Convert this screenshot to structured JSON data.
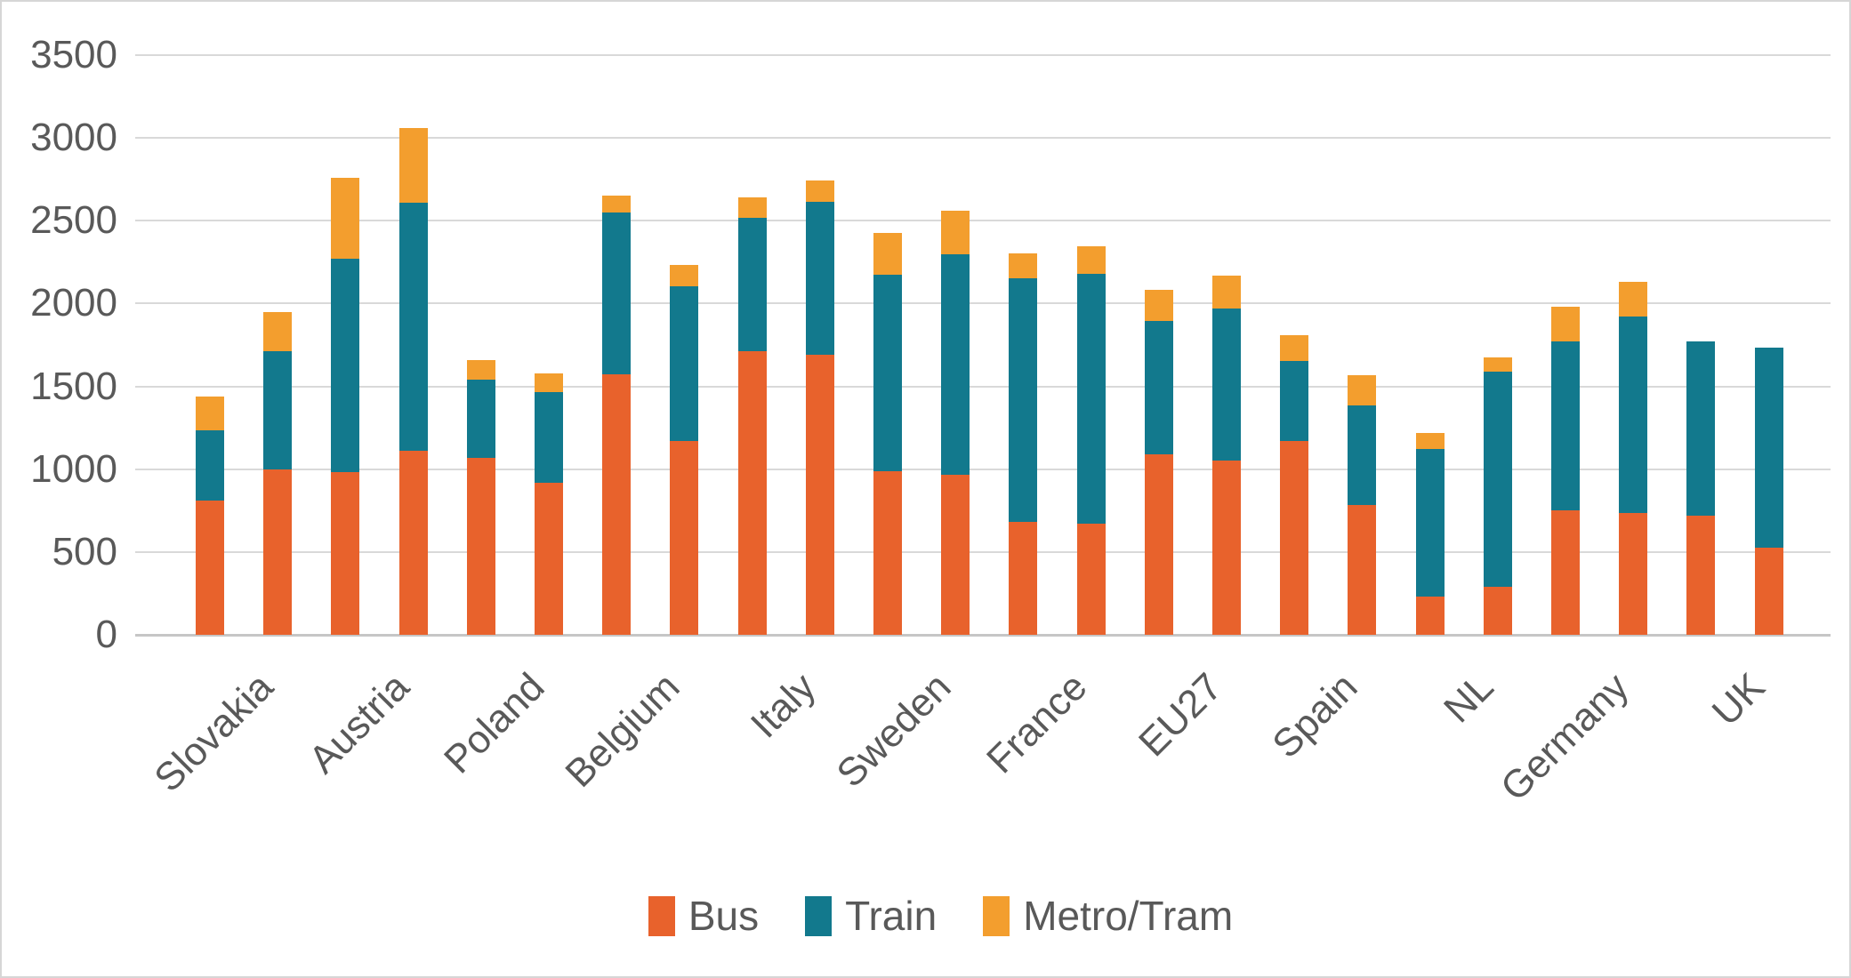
{
  "chart_data": {
    "type": "bar",
    "stacked": true,
    "bars_per_category": 2,
    "title": "",
    "xlabel": "",
    "ylabel": "",
    "ylim": [
      0,
      3500
    ],
    "grid": "horizontal",
    "legend_position": "bottom",
    "categories": [
      "Slovakia",
      "Austria",
      "Poland",
      "Belgium",
      "Italy",
      "Sweden",
      "France",
      "EU27",
      "Spain",
      "NL",
      "Germany",
      "UK"
    ],
    "series": [
      {
        "name": "Bus",
        "color": "#e8622c",
        "values": [
          810,
          1000,
          985,
          1110,
          1070,
          920,
          1575,
          1170,
          1715,
          1690,
          990,
          965,
          680,
          670,
          1090,
          1050,
          1170,
          785,
          230,
          290,
          750,
          735,
          720,
          525
        ]
      },
      {
        "name": "Train",
        "color": "#12798d",
        "values": [
          425,
          710,
          1285,
          1500,
          470,
          545,
          975,
          935,
          800,
          925,
          1185,
          1335,
          1470,
          1510,
          805,
          920,
          485,
          600,
          890,
          1300,
          1020,
          1185,
          1050,
          1210
        ]
      },
      {
        "name": "Metro/Tram",
        "color": "#f39e2e",
        "values": [
          205,
          240,
          490,
          450,
          120,
          115,
          100,
          130,
          125,
          130,
          250,
          260,
          155,
          165,
          190,
          200,
          155,
          180,
          100,
          85,
          210,
          210,
          0,
          0
        ]
      }
    ]
  },
  "y_axis": {
    "tick_labels": [
      "0",
      "500",
      "1000",
      "1500",
      "2000",
      "2500",
      "3000",
      "3500"
    ],
    "min": 0,
    "max": 3500,
    "step": 500
  },
  "legend": {
    "items": [
      {
        "label": "Bus",
        "color": "#e8622c"
      },
      {
        "label": "Train",
        "color": "#12798d"
      },
      {
        "label": "Metro/Tram",
        "color": "#f39e2e"
      }
    ]
  },
  "colors": {
    "gridline": "#d9d9d9",
    "axis_line": "#c6c6c6",
    "text": "#595959",
    "background": "#ffffff",
    "border": "#d6d6d6"
  }
}
